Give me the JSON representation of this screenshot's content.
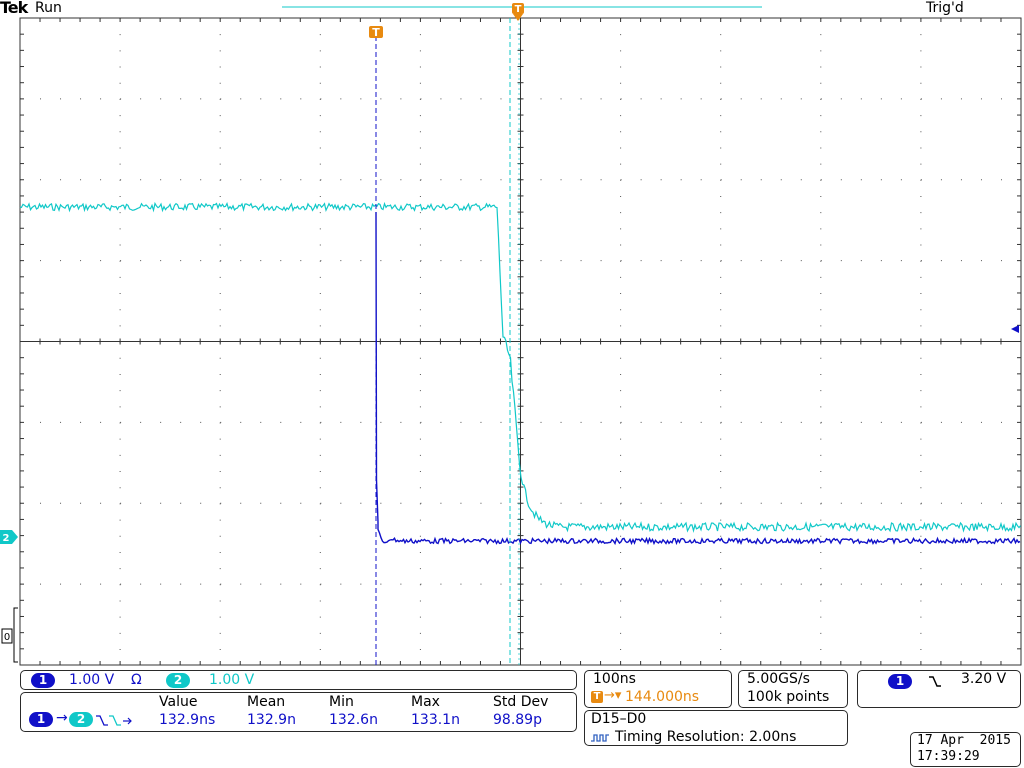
{
  "header": {
    "brand": "Tek",
    "status": "Run",
    "trigger_state": "Trig'd"
  },
  "markers": {
    "cursor_a_glyph": "T",
    "cursor_b_glyph": "T",
    "ch2_marker": "2",
    "ground_marker": "0"
  },
  "channels": {
    "ch1": {
      "number": "1",
      "scale": "1.00 V",
      "coupling_symbol": "Ω",
      "color": "#1010c8"
    },
    "ch2": {
      "number": "2",
      "scale": "1.00 V",
      "color": "#10c8c8"
    }
  },
  "measurement": {
    "source_from": "1",
    "source_to": "2",
    "headers": [
      "Value",
      "Mean",
      "Min",
      "Max",
      "Std Dev"
    ],
    "values": [
      "132.9ns",
      "132.9n",
      "132.6n",
      "133.1n",
      "98.89p"
    ]
  },
  "timebase": {
    "scale": "100ns",
    "delay": "144.000ns",
    "sample_rate": "5.00GS/s",
    "record_length": "100k points"
  },
  "digital": {
    "bus": "D15–D0",
    "timing_resolution": "Timing Resolution: 2.00ns"
  },
  "trigger": {
    "source": "1",
    "level": "3.20 V"
  },
  "datetime": {
    "date": "17 Apr  2015",
    "time": "17:39:29"
  }
}
